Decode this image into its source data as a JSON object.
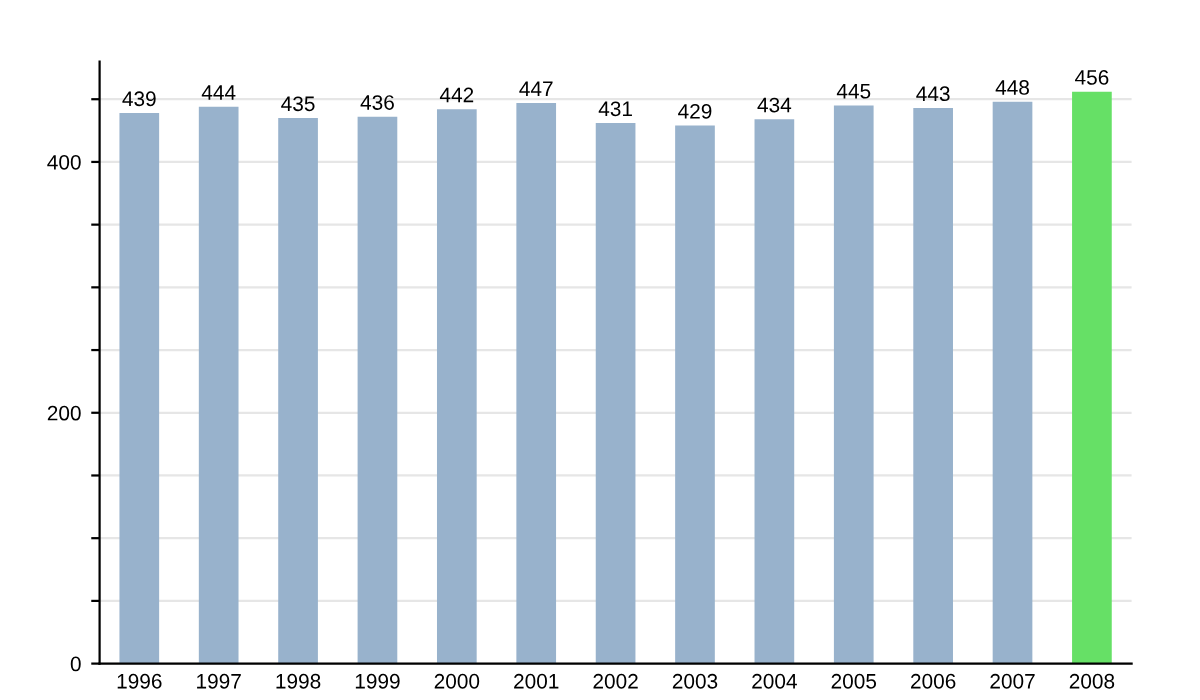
{
  "chart_data": {
    "type": "bar",
    "categories": [
      "1996",
      "1997",
      "1998",
      "1999",
      "2000",
      "2001",
      "2002",
      "2003",
      "2004",
      "2005",
      "2006",
      "2007",
      "2008"
    ],
    "values": [
      439,
      444,
      435,
      436,
      442,
      447,
      431,
      429,
      434,
      445,
      443,
      448,
      456
    ],
    "colors": [
      "#98b2cc",
      "#98b2cc",
      "#98b2cc",
      "#98b2cc",
      "#98b2cc",
      "#98b2cc",
      "#98b2cc",
      "#98b2cc",
      "#98b2cc",
      "#98b2cc",
      "#98b2cc",
      "#98b2cc",
      "#66e066"
    ],
    "ylim": [
      0,
      480
    ],
    "yticks": [
      0,
      {
        "value": 50,
        "label": null
      },
      {
        "value": 100,
        "label": null
      },
      {
        "value": 150,
        "label": null
      },
      200,
      {
        "value": 250,
        "label": null
      },
      {
        "value": 300,
        "label": null
      },
      {
        "value": 350,
        "label": null
      },
      400,
      {
        "value": 450,
        "label": null
      }
    ],
    "grid": "y",
    "data_labels": true
  }
}
